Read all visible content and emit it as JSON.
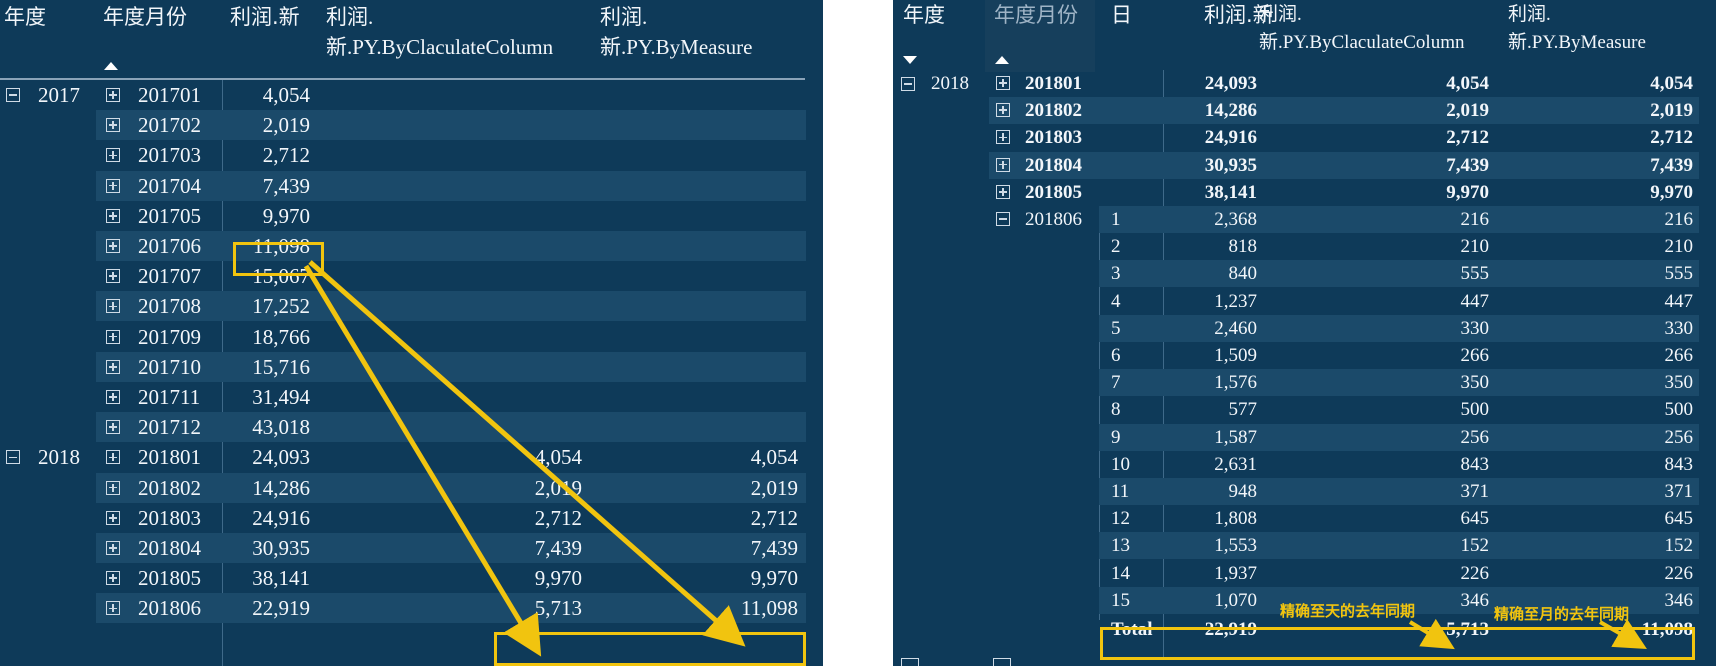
{
  "left": {
    "headers": {
      "year": "年度",
      "month": "年度月份",
      "profit": "利润.新",
      "col_line1": "利润.",
      "col_line2": "新.PY.ByClaculateColumn",
      "meas_line1": "利润.",
      "meas_line2": "新.PY.ByMeasure"
    },
    "sort": "ascending",
    "groups": [
      {
        "year": "2017",
        "expanded": true,
        "start_row": 0
      },
      {
        "year": "2018",
        "expanded": true,
        "start_row": 12
      }
    ],
    "rows": [
      {
        "month": "201701",
        "profit": "4,054",
        "col": "",
        "meas": ""
      },
      {
        "month": "201702",
        "profit": "2,019",
        "col": "",
        "meas": ""
      },
      {
        "month": "201703",
        "profit": "2,712",
        "col": "",
        "meas": ""
      },
      {
        "month": "201704",
        "profit": "7,439",
        "col": "",
        "meas": ""
      },
      {
        "month": "201705",
        "profit": "9,970",
        "col": "",
        "meas": ""
      },
      {
        "month": "201706",
        "profit": "11,098",
        "col": "",
        "meas": ""
      },
      {
        "month": "201707",
        "profit": "15,067",
        "col": "",
        "meas": ""
      },
      {
        "month": "201708",
        "profit": "17,252",
        "col": "",
        "meas": ""
      },
      {
        "month": "201709",
        "profit": "18,766",
        "col": "",
        "meas": ""
      },
      {
        "month": "201710",
        "profit": "15,716",
        "col": "",
        "meas": ""
      },
      {
        "month": "201711",
        "profit": "31,494",
        "col": "",
        "meas": ""
      },
      {
        "month": "201712",
        "profit": "43,018",
        "col": "",
        "meas": ""
      },
      {
        "month": "201801",
        "profit": "24,093",
        "col": "4,054",
        "meas": "4,054"
      },
      {
        "month": "201802",
        "profit": "14,286",
        "col": "2,019",
        "meas": "2,019"
      },
      {
        "month": "201803",
        "profit": "24,916",
        "col": "2,712",
        "meas": "2,712"
      },
      {
        "month": "201804",
        "profit": "30,935",
        "col": "7,439",
        "meas": "7,439"
      },
      {
        "month": "201805",
        "profit": "38,141",
        "col": "9,970",
        "meas": "9,970"
      },
      {
        "month": "201806",
        "profit": "22,919",
        "col": "5,713",
        "meas": "11,098"
      }
    ]
  },
  "right": {
    "headers": {
      "year": "年度",
      "month": "年度月份",
      "day": "日",
      "profit": "利润.新",
      "col_line1": "利润.",
      "col_line2": "新.PY.ByClaculateColumn",
      "meas_line1": "利润.",
      "meas_line2": "新.PY.ByMeasure"
    },
    "group_year": "2018",
    "month_rows": [
      {
        "month": "201801",
        "profit": "24,093",
        "col": "4,054",
        "meas": "4,054"
      },
      {
        "month": "201802",
        "profit": "14,286",
        "col": "2,019",
        "meas": "2,019"
      },
      {
        "month": "201803",
        "profit": "24,916",
        "col": "2,712",
        "meas": "2,712"
      },
      {
        "month": "201804",
        "profit": "30,935",
        "col": "7,439",
        "meas": "7,439"
      },
      {
        "month": "201805",
        "profit": "38,141",
        "col": "9,970",
        "meas": "9,970"
      }
    ],
    "expanded_month": "201806",
    "day_rows": [
      {
        "day": "1",
        "profit": "2,368",
        "col": "216",
        "meas": "216"
      },
      {
        "day": "2",
        "profit": "818",
        "col": "210",
        "meas": "210"
      },
      {
        "day": "3",
        "profit": "840",
        "col": "555",
        "meas": "555"
      },
      {
        "day": "4",
        "profit": "1,237",
        "col": "447",
        "meas": "447"
      },
      {
        "day": "5",
        "profit": "2,460",
        "col": "330",
        "meas": "330"
      },
      {
        "day": "6",
        "profit": "1,509",
        "col": "266",
        "meas": "266"
      },
      {
        "day": "7",
        "profit": "1,576",
        "col": "350",
        "meas": "350"
      },
      {
        "day": "8",
        "profit": "577",
        "col": "500",
        "meas": "500"
      },
      {
        "day": "9",
        "profit": "1,587",
        "col": "256",
        "meas": "256"
      },
      {
        "day": "10",
        "profit": "2,631",
        "col": "843",
        "meas": "843"
      },
      {
        "day": "11",
        "profit": "948",
        "col": "371",
        "meas": "371"
      },
      {
        "day": "12",
        "profit": "1,808",
        "col": "645",
        "meas": "645"
      },
      {
        "day": "13",
        "profit": "1,553",
        "col": "152",
        "meas": "152"
      },
      {
        "day": "14",
        "profit": "1,937",
        "col": "226",
        "meas": "226"
      },
      {
        "day": "15",
        "profit": "1,070",
        "col": "346",
        "meas": "346"
      }
    ],
    "total": {
      "label": "Total",
      "profit": "22,919",
      "col": "5,713",
      "meas": "11,098"
    },
    "annotations": {
      "day_precision": "精确至天的去年同期",
      "month_precision": "精确至月的去年同期"
    }
  },
  "colors": {
    "panel_bg": "#0e3a59",
    "row_band": "#1b4a6a",
    "highlight": "#f1c40f",
    "text": "#f2f6fa"
  }
}
